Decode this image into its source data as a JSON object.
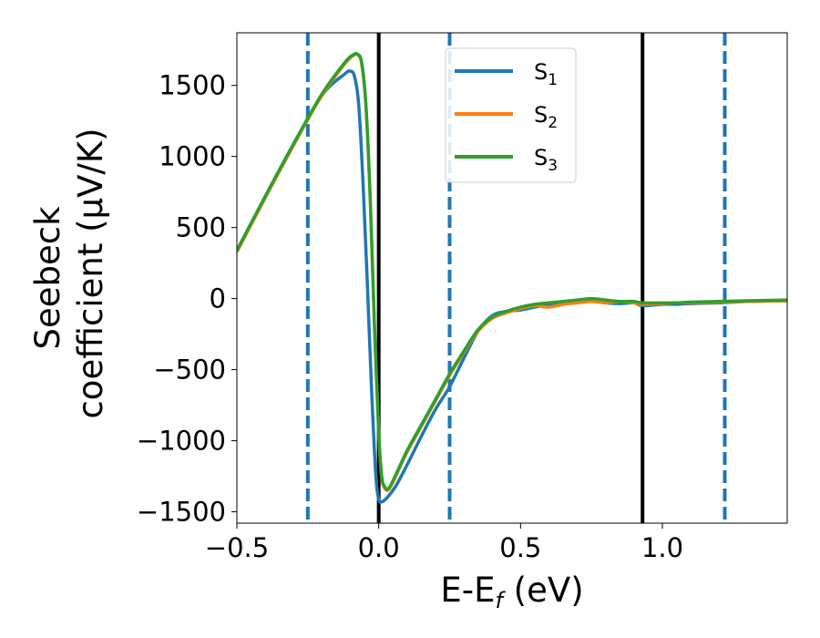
{
  "chart_data": {
    "type": "line",
    "xlabel_main": "E-E",
    "xlabel_sub": "f",
    "xlabel_unit": " (eV)",
    "ylabel_line1": "Seebeck",
    "ylabel_line2": "coefficient  (μV/K)",
    "xlim": [
      -0.5,
      1.44
    ],
    "ylim": [
      -1580,
      1870
    ],
    "xticks": [
      {
        "value": -0.5,
        "label": "−0.5"
      },
      {
        "value": 0.0,
        "label": "0.0"
      },
      {
        "value": 0.5,
        "label": "0.5"
      },
      {
        "value": 1.0,
        "label": "1.0"
      }
    ],
    "yticks": [
      {
        "value": -1500,
        "label": "−1500"
      },
      {
        "value": -1000,
        "label": "−1000"
      },
      {
        "value": -500,
        "label": "−500"
      },
      {
        "value": 0,
        "label": "0"
      },
      {
        "value": 500,
        "label": "500"
      },
      {
        "value": 1000,
        "label": "1000"
      },
      {
        "value": 1500,
        "label": "1500"
      }
    ],
    "legend_position": "top-center",
    "series": [
      {
        "name": "S",
        "sub": "1",
        "color": "#1f77b4",
        "x": [
          -0.5,
          -0.4,
          -0.3,
          -0.2,
          -0.12,
          -0.1,
          -0.085,
          -0.07,
          -0.055,
          -0.04,
          -0.025,
          -0.01,
          0.0,
          0.01,
          0.03,
          0.06,
          0.1,
          0.15,
          0.2,
          0.25,
          0.3,
          0.35,
          0.4,
          0.45,
          0.5,
          0.55,
          0.6,
          0.65,
          0.7,
          0.75,
          0.8,
          0.85,
          0.9,
          0.93,
          1.0,
          1.05,
          1.1,
          1.2,
          1.3,
          1.44
        ],
        "y": [
          330,
          710,
          1080,
          1430,
          1580,
          1600,
          1560,
          1350,
          800,
          100,
          -650,
          -1250,
          -1410,
          -1430,
          -1400,
          -1320,
          -1170,
          -970,
          -780,
          -620,
          -420,
          -230,
          -120,
          -90,
          -80,
          -60,
          -40,
          -30,
          -20,
          -10,
          -30,
          -35,
          -30,
          -50,
          -40,
          -40,
          -35,
          -30,
          -20,
          -15
        ]
      },
      {
        "name": "S",
        "sub": "2",
        "color": "#ff7f0e",
        "x": [
          -0.5,
          -0.4,
          -0.3,
          -0.2,
          -0.12,
          -0.09,
          -0.075,
          -0.06,
          -0.045,
          -0.03,
          -0.015,
          0.0,
          0.01,
          0.02,
          0.035,
          0.06,
          0.1,
          0.15,
          0.2,
          0.25,
          0.3,
          0.35,
          0.4,
          0.45,
          0.5,
          0.55,
          0.6,
          0.65,
          0.7,
          0.75,
          0.8,
          0.85,
          0.9,
          0.93,
          1.0,
          1.05,
          1.1,
          1.2,
          1.3,
          1.44
        ],
        "y": [
          330,
          710,
          1080,
          1430,
          1650,
          1710,
          1715,
          1650,
          1350,
          700,
          -200,
          -950,
          -1250,
          -1330,
          -1345,
          -1250,
          -1080,
          -900,
          -720,
          -540,
          -380,
          -230,
          -140,
          -100,
          -70,
          -50,
          -60,
          -40,
          -30,
          -20,
          -30,
          -20,
          -30,
          -40,
          -35,
          -30,
          -30,
          -25,
          -20,
          -15
        ]
      },
      {
        "name": "S",
        "sub": "3",
        "color": "#2ca02c",
        "x": [
          -0.5,
          -0.4,
          -0.3,
          -0.2,
          -0.12,
          -0.09,
          -0.075,
          -0.06,
          -0.045,
          -0.03,
          -0.015,
          0.0,
          0.01,
          0.02,
          0.035,
          0.06,
          0.1,
          0.15,
          0.2,
          0.25,
          0.3,
          0.35,
          0.4,
          0.45,
          0.5,
          0.55,
          0.6,
          0.65,
          0.7,
          0.75,
          0.8,
          0.85,
          0.9,
          0.93,
          1.0,
          1.05,
          1.1,
          1.2,
          1.3,
          1.44
        ],
        "y": [
          340,
          720,
          1090,
          1440,
          1660,
          1715,
          1720,
          1660,
          1360,
          710,
          -190,
          -940,
          -1240,
          -1320,
          -1335,
          -1240,
          -1070,
          -890,
          -710,
          -530,
          -370,
          -220,
          -130,
          -90,
          -60,
          -40,
          -30,
          -20,
          -10,
          0,
          -10,
          -20,
          -20,
          -30,
          -30,
          -30,
          -25,
          -20,
          -15,
          -10
        ]
      }
    ],
    "vlines": [
      {
        "x": -0.25,
        "color": "#1f77b4",
        "style": "dashed"
      },
      {
        "x": 0.0,
        "color": "#000000",
        "style": "solid"
      },
      {
        "x": 0.25,
        "color": "#1f77b4",
        "style": "dashed"
      },
      {
        "x": 0.93,
        "color": "#000000",
        "style": "solid"
      },
      {
        "x": 1.22,
        "color": "#1f77b4",
        "style": "dashed"
      }
    ]
  }
}
